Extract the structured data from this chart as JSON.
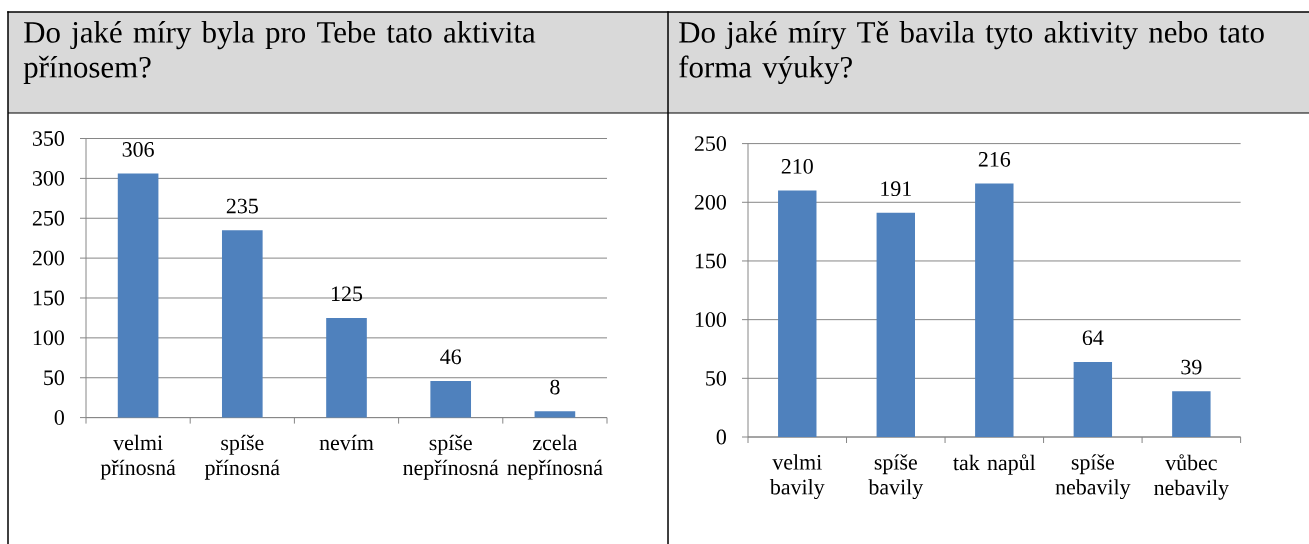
{
  "chart_data": [
    {
      "type": "bar",
      "title": "Do jaké míry byla pro Tebe tato aktivita přínosem?",
      "categories": [
        "velmi přínosná",
        "spíše přínosná",
        "nevím",
        "spíše nepřínosná",
        "zcela nepřínosná"
      ],
      "values": [
        306,
        235,
        125,
        46,
        8
      ],
      "color": "#4f81bd",
      "ylim": [
        0,
        350
      ],
      "yticks": [
        0,
        50,
        100,
        150,
        200,
        250,
        300,
        350
      ],
      "grid": "y",
      "data_labels": true
    },
    {
      "type": "bar",
      "title": "Do jaké míry Tě bavila tyto aktivity nebo tato forma výuky?",
      "categories": [
        "velmi bavily",
        "spíše bavily",
        "tak napůl",
        "spíše nebavily",
        "vůbec nebavily"
      ],
      "values": [
        210,
        191,
        216,
        64,
        39
      ],
      "color": "#4f81bd",
      "ylim": [
        0,
        250
      ],
      "yticks": [
        0,
        50,
        100,
        150,
        200,
        250
      ],
      "grid": "y",
      "data_labels": true
    }
  ]
}
